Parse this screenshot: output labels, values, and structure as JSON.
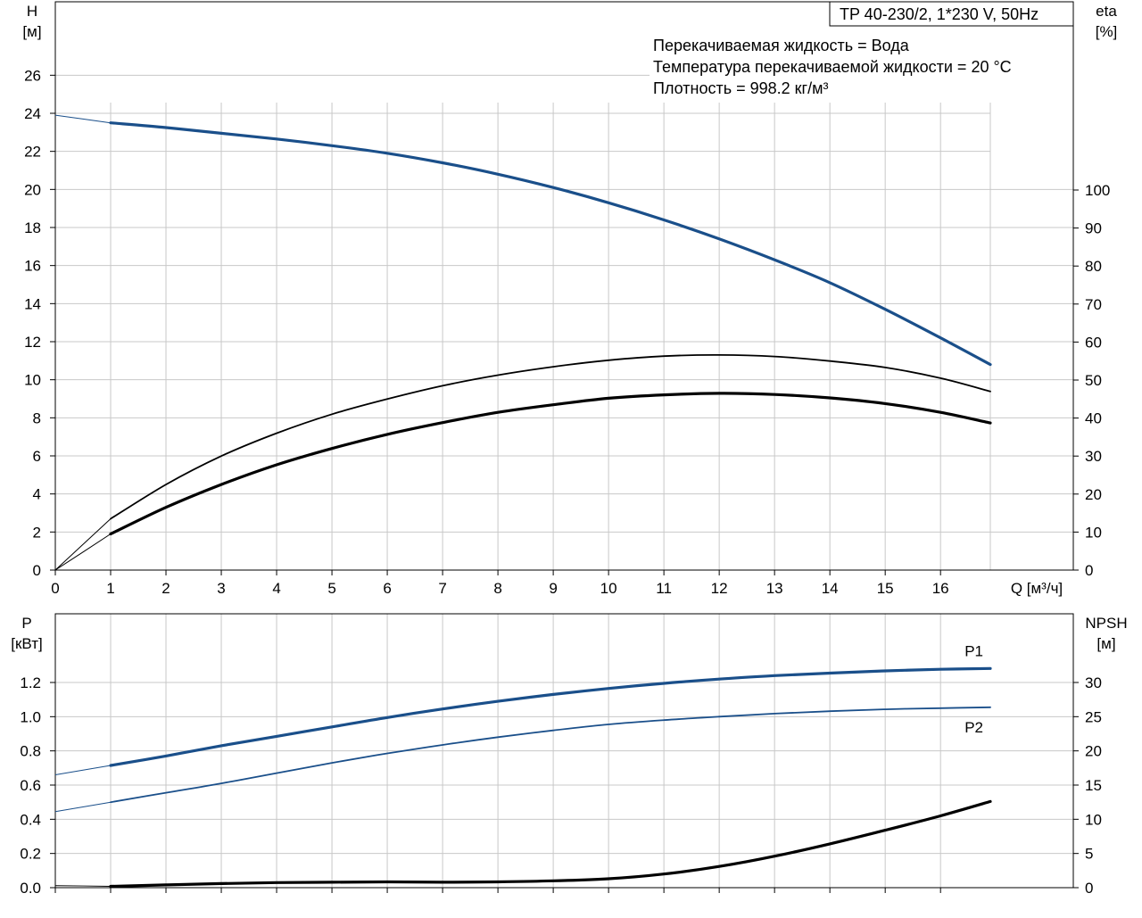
{
  "header": {
    "pump_title": "TP 40-230/2, 1*230 V, 50Hz",
    "info_lines": [
      "Перекачиваемая жидкость = Вода",
      "Температура перекачиваемой жидкости = 20 °C",
      "Плотность = 998.2 кг/м³"
    ]
  },
  "colors": {
    "blue": "#1a4f8a",
    "black": "#000000",
    "grid": "#c8c8c8"
  },
  "chart_data": [
    {
      "type": "line",
      "title": "",
      "xlabel": "Q [м³/ч]",
      "xlim": [
        0,
        17
      ],
      "x_ticks": [
        0,
        1,
        2,
        3,
        4,
        5,
        6,
        7,
        8,
        9,
        10,
        11,
        12,
        13,
        14,
        15,
        16
      ],
      "x_tick_labels": [
        "0",
        "1",
        "2",
        "3",
        "4",
        "5",
        "6",
        "7",
        "8",
        "9",
        "10",
        "11",
        "12",
        "13",
        "14",
        "15",
        "16"
      ],
      "y_left": {
        "label_lines": [
          "H",
          "[м]"
        ],
        "ylim": [
          0,
          28
        ],
        "ticks": [
          0,
          2,
          4,
          6,
          8,
          10,
          12,
          14,
          16,
          18,
          20,
          22,
          24,
          26
        ],
        "tick_labels": [
          "0",
          "2",
          "4",
          "6",
          "8",
          "10",
          "12",
          "14",
          "16",
          "18",
          "20",
          "22",
          "24",
          "26"
        ]
      },
      "y_right": {
        "label_lines": [
          "eta",
          "[%]"
        ],
        "ylim": [
          0,
          140
        ],
        "ticks": [
          0,
          10,
          20,
          30,
          40,
          50,
          60,
          70,
          80,
          90,
          100
        ],
        "tick_labels": [
          "0",
          "10",
          "20",
          "30",
          "40",
          "50",
          "60",
          "70",
          "80",
          "90",
          "100"
        ]
      },
      "series": [
        {
          "axis": "left",
          "color": "#1a4f8a",
          "style": "bold",
          "x": [
            0,
            1,
            2,
            3,
            4,
            5,
            6,
            7,
            8,
            9,
            10,
            11,
            12,
            13,
            14,
            15,
            16,
            16.9
          ],
          "y": [
            23.9,
            23.5,
            23.25,
            22.95,
            22.65,
            22.3,
            21.9,
            21.4,
            20.8,
            20.1,
            19.3,
            18.4,
            17.4,
            16.3,
            15.1,
            13.7,
            12.2,
            10.8
          ],
          "dashed_until": 1
        },
        {
          "axis": "right",
          "color": "#000000",
          "style": "thin",
          "x": [
            0,
            1,
            2,
            3,
            4,
            5,
            6,
            7,
            8,
            9,
            10,
            11,
            12,
            13,
            14,
            15,
            16,
            16.9
          ],
          "y": [
            0,
            13.5,
            22.5,
            30,
            36,
            41,
            45,
            48.5,
            51.3,
            53.5,
            55.2,
            56.3,
            56.6,
            56.2,
            55,
            53.3,
            50.5,
            47
          ],
          "dashed_until": 1
        },
        {
          "axis": "right",
          "color": "#000000",
          "style": "bold",
          "x": [
            0,
            1,
            2,
            3,
            4,
            5,
            6,
            7,
            8,
            9,
            10,
            11,
            12,
            13,
            14,
            15,
            16,
            16.9
          ],
          "y": [
            0,
            9.5,
            16.5,
            22.5,
            27.7,
            32,
            35.7,
            38.8,
            41.5,
            43.5,
            45.2,
            46.1,
            46.5,
            46.2,
            45.3,
            43.8,
            41.5,
            38.7
          ],
          "dashed_until": 1
        }
      ]
    },
    {
      "type": "line",
      "title": "",
      "xlim": [
        0,
        17
      ],
      "x_ticks": [
        0,
        1,
        2,
        3,
        4,
        5,
        6,
        7,
        8,
        9,
        10,
        11,
        12,
        13,
        14,
        15,
        16
      ],
      "y_left": {
        "label_lines": [
          "P",
          "[кВт]"
        ],
        "ylim": [
          0,
          1.4
        ],
        "ticks": [
          0,
          0.2,
          0.4,
          0.6,
          0.8,
          1.0,
          1.2
        ],
        "tick_labels": [
          "0.0",
          "0.2",
          "0.4",
          "0.6",
          "0.8",
          "1.0",
          "1.2"
        ]
      },
      "y_right": {
        "label_lines": [
          "NPSH",
          "[м]"
        ],
        "ylim": [
          0,
          35
        ],
        "ticks": [
          0,
          5,
          10,
          15,
          20,
          25,
          30
        ],
        "tick_labels": [
          "0",
          "5",
          "10",
          "15",
          "20",
          "25",
          "30"
        ]
      },
      "series": [
        {
          "name": "P1",
          "axis": "left",
          "color": "#1a4f8a",
          "style": "bold",
          "x": [
            0,
            1,
            2,
            3,
            4,
            5,
            6,
            7,
            8,
            9,
            10,
            11,
            12,
            13,
            14,
            15,
            16,
            16.9
          ],
          "y": [
            0.66,
            0.715,
            0.77,
            0.83,
            0.885,
            0.94,
            0.995,
            1.045,
            1.09,
            1.13,
            1.165,
            1.195,
            1.22,
            1.24,
            1.255,
            1.268,
            1.277,
            1.282
          ],
          "dashed_until": 1
        },
        {
          "name": "P2",
          "axis": "left",
          "color": "#1a4f8a",
          "style": "thin",
          "x": [
            0,
            1,
            2,
            3,
            4,
            5,
            6,
            7,
            8,
            9,
            10,
            11,
            12,
            13,
            14,
            15,
            16,
            16.9
          ],
          "y": [
            0.445,
            0.5,
            0.555,
            0.61,
            0.67,
            0.73,
            0.785,
            0.835,
            0.88,
            0.92,
            0.955,
            0.98,
            1.0,
            1.018,
            1.032,
            1.043,
            1.05,
            1.055
          ],
          "dashed_until": 1
        },
        {
          "axis": "right",
          "color": "#000000",
          "style": "bold",
          "x": [
            0,
            1,
            2,
            3,
            4,
            5,
            6,
            7,
            8,
            9,
            10,
            11,
            12,
            13,
            14,
            15,
            16,
            16.9
          ],
          "y": [
            0.3,
            0.2,
            0.4,
            0.6,
            0.75,
            0.8,
            0.85,
            0.8,
            0.85,
            1.0,
            1.3,
            2.0,
            3.1,
            4.6,
            6.4,
            8.4,
            10.5,
            12.6
          ],
          "dashed_until": 1
        }
      ]
    }
  ]
}
